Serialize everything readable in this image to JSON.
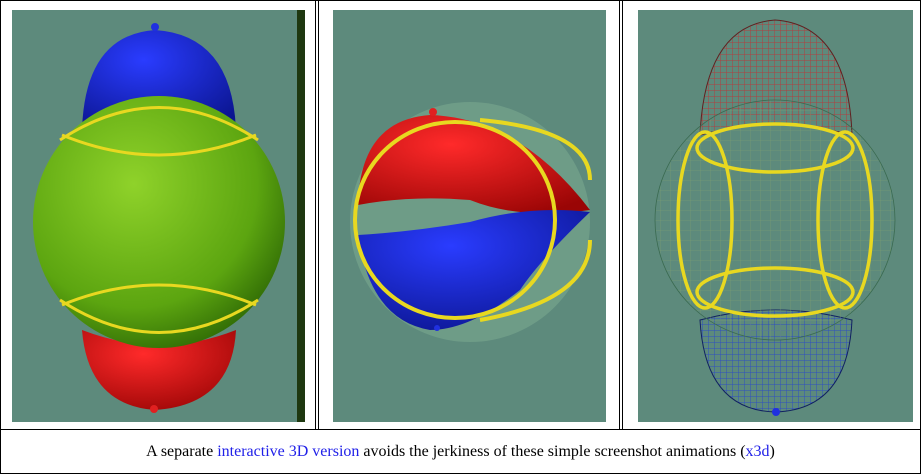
{
  "caption": {
    "before": "A separate ",
    "link": "interactive 3D version",
    "middle": " avoids the jerkiness of these simple screenshot animations (",
    "link2": "x3d",
    "after": ")"
  }
}
